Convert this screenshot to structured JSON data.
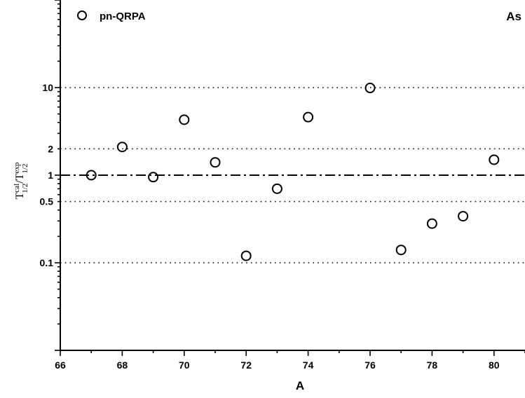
{
  "chart_data": {
    "type": "scatter",
    "panel_label": "As",
    "xlabel": "A",
    "ylabel": {
      "main": "T",
      "numerator_sup": "cal",
      "numerator_sub": "1/2",
      "slash": "/",
      "denominator_main": "T",
      "denominator_sup": "exp",
      "denominator_sub": "1/2"
    },
    "xlim": [
      66,
      81
    ],
    "x_ticks": [
      66,
      68,
      70,
      72,
      74,
      76,
      78,
      80
    ],
    "x_tick_labels": [
      "66",
      "68",
      "70",
      "72",
      "74",
      "76",
      "78",
      "80"
    ],
    "y_scale": "log",
    "ylim": [
      0.01,
      100
    ],
    "y_ticks": [
      0.1,
      0.5,
      1,
      2,
      10
    ],
    "y_tick_labels": [
      "0.1",
      "0.5",
      "1",
      "2",
      "10"
    ],
    "reference_lines": [
      {
        "y": 0.1,
        "style": "dotted"
      },
      {
        "y": 0.5,
        "style": "dotted"
      },
      {
        "y": 1,
        "style": "dash-dot"
      },
      {
        "y": 2,
        "style": "dotted"
      },
      {
        "y": 10,
        "style": "dotted"
      }
    ],
    "legend_placement": "top-left",
    "series": [
      {
        "name": "pn-QRPA",
        "marker": "open-circle",
        "color": "#000000",
        "x": [
          67,
          68,
          69,
          70,
          71,
          72,
          73,
          74,
          76,
          77,
          78,
          79,
          80
        ],
        "y": [
          1.0,
          2.1,
          0.95,
          4.3,
          1.4,
          0.12,
          0.7,
          4.6,
          9.9,
          0.14,
          0.28,
          0.34,
          1.5
        ]
      }
    ]
  }
}
